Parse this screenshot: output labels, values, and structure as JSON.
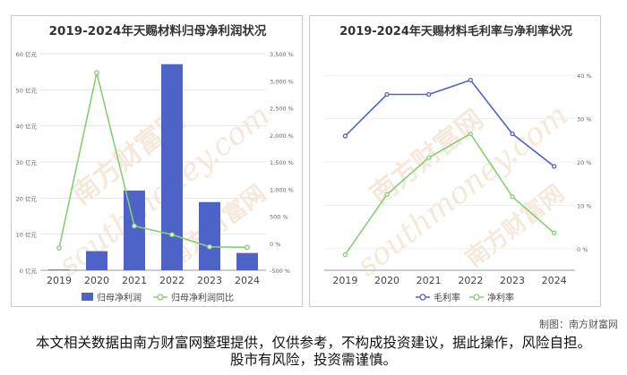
{
  "chart_data": [
    {
      "type": "bar",
      "title": "2019-2024年天赐材料归母净利润状况",
      "categories": [
        "2019",
        "2020",
        "2021",
        "2022",
        "2023",
        "2024"
      ],
      "y_left": {
        "ticks": [
          "0 亿元",
          "10 亿元",
          "20 亿元",
          "30 亿元",
          "40 亿元",
          "50 亿元",
          "60 亿元"
        ],
        "lim": [
          0,
          60
        ]
      },
      "y_right": {
        "ticks": [
          "-500 %",
          "0 %",
          "500 %",
          "1,000 %",
          "1,500 %",
          "2,000 %",
          "2,500 %",
          "3,000 %",
          "3,500 %"
        ],
        "lim": [
          -500,
          3500
        ]
      },
      "series": [
        {
          "name": "归母净利润",
          "kind": "bar",
          "axis": "left",
          "color": "#4e63c8",
          "values": [
            0.2,
            5.3,
            22.1,
            57.1,
            18.9,
            4.8
          ]
        },
        {
          "name": "归母净利润同比",
          "kind": "line",
          "axis": "right",
          "color": "#86cf74",
          "values": [
            -91,
            3150,
            318,
            158,
            -67,
            -75
          ]
        }
      ],
      "legend": "bottom"
    },
    {
      "type": "line",
      "title": "2019-2024年天赐材料毛利率与净利率状况",
      "categories": [
        "2019",
        "2020",
        "2021",
        "2022",
        "2023",
        "2024"
      ],
      "y_right": {
        "ticks": [
          "0 %",
          "10 %",
          "20 %",
          "30 %",
          "40 %"
        ],
        "lim": [
          -5,
          45
        ]
      },
      "series": [
        {
          "name": "毛利率",
          "color": "#4e63c8",
          "values": [
            26,
            35.6,
            35.6,
            38.9,
            26.5,
            19
          ]
        },
        {
          "name": "净利率",
          "color": "#86cf74",
          "values": [
            -1.4,
            12.5,
            21,
            26.5,
            12,
            3.6
          ]
        }
      ],
      "legend": "bottom"
    }
  ],
  "watermark": {
    "text_cn": "南方财富网",
    "text_en": "southmoney.com"
  },
  "credit": "制图：南方财富网",
  "disclaimer": "本文相关数据由南方财富网整理提供，仅供参考，不构成投资建议，据此操作，风险自担。股市有风险，投资需谨慎。"
}
